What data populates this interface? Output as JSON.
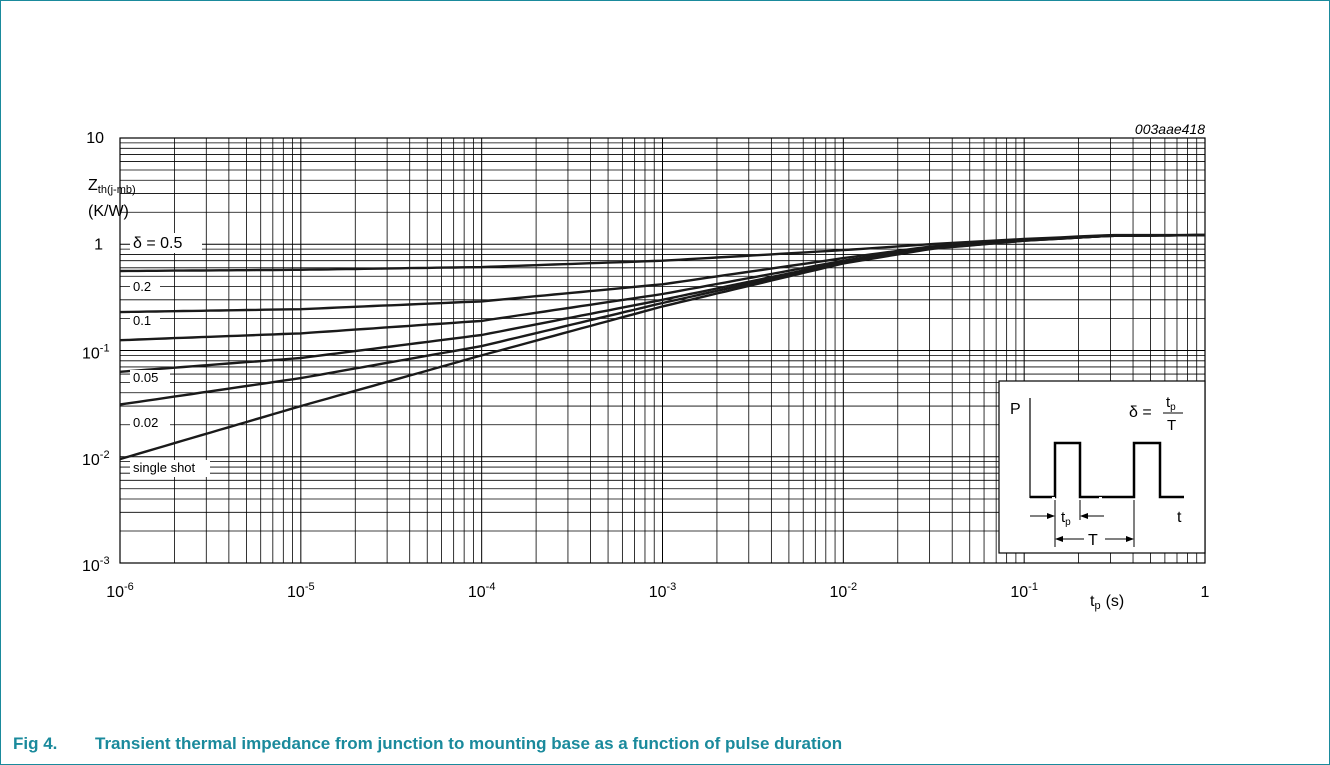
{
  "figure": {
    "id": "003aae418",
    "caption_number": "Fig 4.",
    "caption_text": "Transient thermal impedance from junction to mounting base as a function of pulse duration"
  },
  "chart_data": {
    "type": "line",
    "x_scale": "log",
    "y_scale": "log",
    "xlim": [
      1e-06,
      1
    ],
    "ylim": [
      0.001,
      10
    ],
    "grid": true,
    "y_label_main": "Z",
    "y_label_sub": "th(j-mb)",
    "y_unit": "(K/W)",
    "x_label_main": "t",
    "x_label_sub": "p",
    "x_unit": "(s)",
    "x_ticks": [
      {
        "value": 1e-06,
        "base": "10",
        "exp": "-6"
      },
      {
        "value": 1e-05,
        "base": "10",
        "exp": "-5"
      },
      {
        "value": 0.0001,
        "base": "10",
        "exp": "-4"
      },
      {
        "value": 0.001,
        "base": "10",
        "exp": "-3"
      },
      {
        "value": 0.01,
        "base": "10",
        "exp": "-2"
      },
      {
        "value": 0.1,
        "base": "10",
        "exp": "-1"
      },
      {
        "value": 1,
        "base": "1",
        "exp": ""
      }
    ],
    "y_ticks": [
      {
        "value": 10,
        "base": "10",
        "exp": ""
      },
      {
        "value": 1,
        "base": "1",
        "exp": ""
      },
      {
        "value": 0.1,
        "base": "10",
        "exp": "-1"
      },
      {
        "value": 0.01,
        "base": "10",
        "exp": "-2"
      },
      {
        "value": 0.001,
        "base": "10",
        "exp": "-3"
      }
    ],
    "series": [
      {
        "name": "δ = 0.5",
        "x": [
          1e-06,
          1e-05,
          0.0001,
          0.001,
          0.01,
          0.03,
          0.1,
          0.3,
          1
        ],
        "y": [
          0.56,
          0.575,
          0.61,
          0.7,
          0.88,
          1.0,
          1.12,
          1.22,
          1.22
        ]
      },
      {
        "name": "0.2",
        "x": [
          1e-06,
          1e-05,
          0.0001,
          0.001,
          0.01,
          0.03,
          0.1,
          0.3,
          1
        ],
        "y": [
          0.23,
          0.245,
          0.29,
          0.42,
          0.74,
          0.95,
          1.1,
          1.21,
          1.22
        ]
      },
      {
        "name": "0.1",
        "x": [
          1e-06,
          1e-05,
          0.0001,
          0.001,
          0.01,
          0.03,
          0.1,
          0.3,
          1
        ],
        "y": [
          0.125,
          0.145,
          0.19,
          0.34,
          0.7,
          0.93,
          1.09,
          1.2,
          1.22
        ]
      },
      {
        "name": "0.05",
        "x": [
          1e-06,
          1e-05,
          0.0001,
          0.001,
          0.01,
          0.03,
          0.1,
          0.3,
          1
        ],
        "y": [
          0.063,
          0.085,
          0.14,
          0.3,
          0.68,
          0.92,
          1.09,
          1.2,
          1.22
        ]
      },
      {
        "name": "0.02",
        "x": [
          1e-06,
          1e-05,
          0.0001,
          0.001,
          0.01,
          0.03,
          0.1,
          0.3,
          1
        ],
        "y": [
          0.031,
          0.055,
          0.11,
          0.28,
          0.67,
          0.91,
          1.08,
          1.2,
          1.22
        ]
      },
      {
        "name": "single shot",
        "x": [
          1e-06,
          1e-05,
          0.0001,
          0.001,
          0.01,
          0.03,
          0.1,
          0.3,
          1
        ],
        "y": [
          0.0095,
          0.03,
          0.09,
          0.26,
          0.66,
          0.9,
          1.08,
          1.2,
          1.22
        ]
      }
    ]
  },
  "inset": {
    "p_label": "P",
    "t_label": "t",
    "delta_lhs": "δ =",
    "num_main": "t",
    "num_sub": "p",
    "den": "T",
    "tp_main": "t",
    "tp_sub": "p",
    "T_label": "T"
  }
}
